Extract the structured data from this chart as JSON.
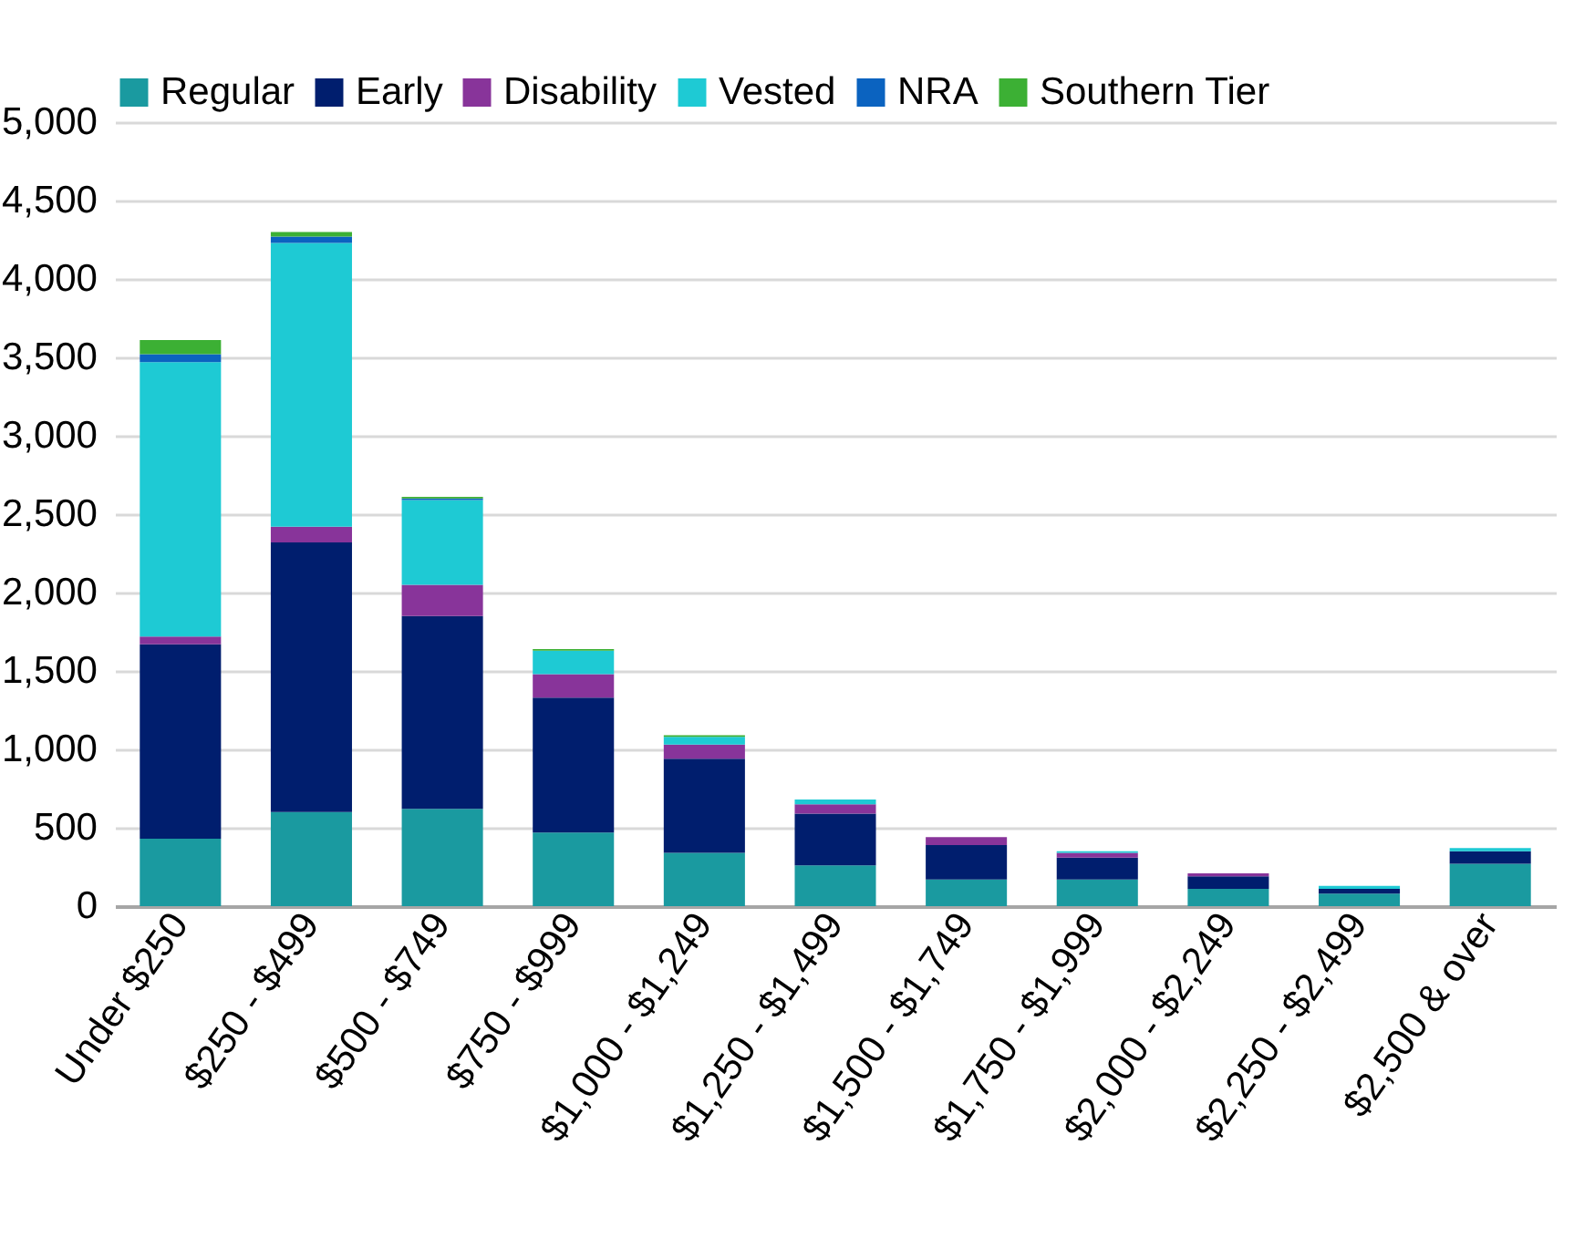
{
  "chart_data": {
    "type": "bar",
    "stacked": true,
    "categories": [
      "Under $250",
      "$250 - $499",
      "$500 - $749",
      "$750 - $999",
      "$1,000 - $1,249",
      "$1,250 - $1,499",
      "$1,500 - $1,749",
      "$1,750 - $1,999",
      "$2,000 - $2,249",
      "$2,250 - $2,499",
      "$2,500 & over"
    ],
    "series": [
      {
        "name": "Regular",
        "color": "#1a9aa0",
        "values": [
          430,
          600,
          620,
          470,
          340,
          260,
          170,
          170,
          110,
          80,
          270
        ]
      },
      {
        "name": "Early",
        "color": "#001e6e",
        "values": [
          1240,
          1720,
          1230,
          860,
          600,
          330,
          220,
          140,
          80,
          30,
          80
        ]
      },
      {
        "name": "Disability",
        "color": "#88349a",
        "values": [
          50,
          100,
          200,
          150,
          90,
          60,
          50,
          30,
          20,
          0,
          0
        ]
      },
      {
        "name": "Vested",
        "color": "#1ecad4",
        "values": [
          1750,
          1810,
          540,
          150,
          50,
          30,
          0,
          10,
          0,
          20,
          20
        ]
      },
      {
        "name": "NRA",
        "color": "#0b63c0",
        "values": [
          50,
          40,
          10,
          0,
          0,
          0,
          0,
          0,
          0,
          0,
          0
        ]
      },
      {
        "name": "Southern Tier",
        "color": "#3cb034",
        "values": [
          90,
          30,
          10,
          10,
          10,
          0,
          0,
          0,
          0,
          0,
          0
        ]
      }
    ],
    "ylim": [
      0,
      5000
    ],
    "yticks": [
      0,
      500,
      {
        "value": 1000,
        "label": "1,000"
      },
      {
        "value": 1500,
        "label": "1,500"
      },
      {
        "value": 2000,
        "label": "2,000"
      },
      {
        "value": 2500,
        "label": "2,500"
      },
      {
        "value": 3000,
        "label": "3,000"
      },
      {
        "value": 3500,
        "label": "3,500"
      },
      {
        "value": 4000,
        "label": "4,000"
      },
      {
        "value": 4500,
        "label": "4,500"
      },
      {
        "value": 5000,
        "label": "5,000"
      }
    ],
    "grid": "y",
    "legend": "top"
  }
}
